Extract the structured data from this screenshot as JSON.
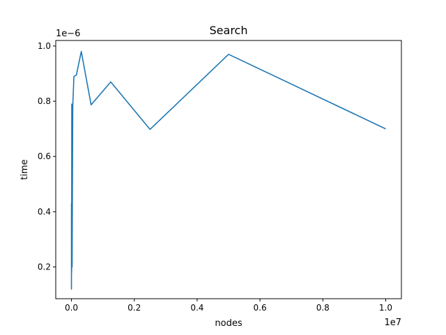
{
  "chart_data": {
    "type": "line",
    "title": "Search",
    "xlabel": "nodes",
    "ylabel": "time",
    "x_offset_label": "1e7",
    "y_offset_label": "1e−6",
    "xlim": [
      -500000,
      10500000
    ],
    "ylim": [
      0.085,
      1.02
    ],
    "x_ticks": [
      0,
      2000000,
      4000000,
      6000000,
      8000000,
      10000000
    ],
    "x_tick_labels": [
      "0.0",
      "0.2",
      "0.4",
      "0.6",
      "0.8",
      "1.0"
    ],
    "y_ticks": [
      0.2,
      0.4,
      0.6,
      0.8,
      1.0
    ],
    "y_tick_labels": [
      "0.2",
      "0.4",
      "0.6",
      "0.8",
      "1.0"
    ],
    "grid": false,
    "series": [
      {
        "color": "#1f77b4",
        "x": [
          10,
          20,
          40,
          80,
          160,
          320,
          640,
          1280,
          2560,
          5120,
          10240,
          20480,
          40960,
          78125,
          156250,
          312500,
          625000,
          1250000,
          2500000,
          5000000,
          10000000
        ],
        "y": [
          0.43,
          0.13,
          0.42,
          0.12,
          0.43,
          0.2,
          0.38,
          0.17,
          0.35,
          0.18,
          0.79,
          0.2,
          0.78,
          0.89,
          0.895,
          0.98,
          0.787,
          0.87,
          0.698,
          0.97,
          0.7
        ]
      }
    ]
  }
}
